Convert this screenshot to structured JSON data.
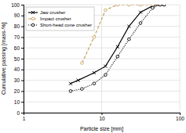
{
  "chart_data": {
    "type": "line",
    "xlabel": "Particle size [mm]",
    "ylabel": "Cumulative passing [mass-%]",
    "log": "x",
    "xlim": [
      1,
      100
    ],
    "ylim": [
      0,
      100
    ],
    "xticks": [
      1,
      10,
      100
    ],
    "yticks": [
      0,
      10,
      20,
      30,
      40,
      50,
      60,
      70,
      80,
      90,
      100
    ],
    "grid": true,
    "legend": "upper left",
    "series": [
      {
        "name": "Jaw crusher",
        "color": "#000000",
        "marker": "x",
        "line_style": "solid",
        "x": [
          4,
          5,
          8,
          11.2,
          16,
          22.4,
          31.5,
          45,
          56,
          63
        ],
        "values": [
          27,
          30,
          37,
          43,
          61,
          80,
          93,
          99,
          100,
          100
        ]
      },
      {
        "name": "Impact crusher",
        "color": "#c8a060",
        "marker": "o",
        "line_style": "dashed",
        "x": [
          5.6,
          8,
          11.2,
          16,
          22.4,
          31.5,
          45,
          56,
          63
        ],
        "values": [
          46,
          70,
          95,
          100,
          100,
          100,
          100,
          100,
          100
        ]
      },
      {
        "name": "Short-head cone crusher",
        "color": "#000000",
        "marker": "o",
        "line_style": "dotted",
        "x": [
          4,
          5.6,
          8,
          11.2,
          16,
          22.4,
          31.5,
          45,
          56,
          63
        ],
        "values": [
          20,
          22,
          27,
          35,
          52,
          68,
          83,
          97,
          100,
          100
        ]
      }
    ]
  }
}
